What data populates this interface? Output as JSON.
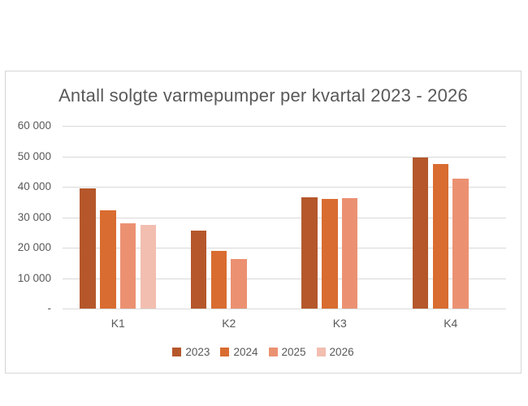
{
  "page": {
    "background": "#ffffff"
  },
  "chart": {
    "border_color": "#d6d6d6",
    "gridline_color": "#d9d9d9",
    "text_color": "#595959"
  },
  "chart_data": {
    "type": "bar",
    "title": "Antall solgte varmepumper per kvartal 2023 - 2026",
    "xlabel": "",
    "ylabel": "",
    "categories": [
      "K1",
      "K2",
      "K3",
      "K4"
    ],
    "series": [
      {
        "name": "2023",
        "color": "#b5572b",
        "values": [
          39500,
          25700,
          36600,
          49600
        ]
      },
      {
        "name": "2024",
        "color": "#d96c30",
        "values": [
          32300,
          19000,
          36100,
          47400
        ]
      },
      {
        "name": "2025",
        "color": "#eb9172",
        "values": [
          27900,
          16400,
          36200,
          42700
        ]
      },
      {
        "name": "2026",
        "color": "#f2beb0",
        "values": [
          27400,
          null,
          null,
          null
        ]
      }
    ],
    "y_axis": {
      "min": 0,
      "max": 60000,
      "ticks": [
        {
          "label": "-",
          "value": 0
        },
        {
          "label": "10 000",
          "value": 10000
        },
        {
          "label": "20 000",
          "value": 20000
        },
        {
          "label": "30 000",
          "value": 30000
        },
        {
          "label": "40 000",
          "value": 40000
        },
        {
          "label": "50 000",
          "value": 50000
        },
        {
          "label": "60 000",
          "value": 60000
        }
      ]
    },
    "legend_position": "bottom",
    "grid": true
  }
}
